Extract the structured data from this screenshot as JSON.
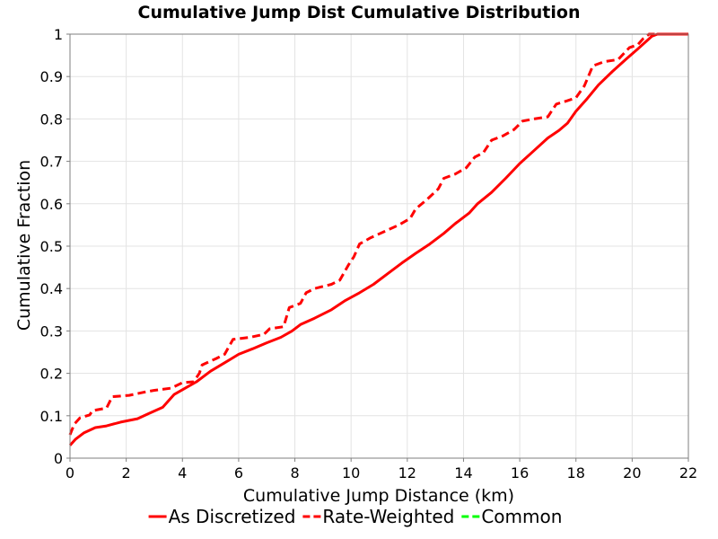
{
  "chart_data": {
    "type": "line",
    "title": "Cumulative Jump Dist Cumulative Distribution",
    "xlabel": "Cumulative Jump Distance (km)",
    "ylabel": "Cumulative Fraction",
    "xlim": [
      0,
      22
    ],
    "ylim": [
      0,
      1
    ],
    "x_ticks": [
      0,
      2,
      4,
      6,
      8,
      10,
      12,
      14,
      16,
      18,
      20,
      22
    ],
    "y_ticks": [
      0,
      0.1,
      0.2,
      0.3,
      0.4,
      0.5,
      0.6,
      0.7,
      0.8,
      0.9,
      1
    ],
    "y_tick_labels": [
      "0",
      "0.1",
      "0.2",
      "0.3",
      "0.4",
      "0.5",
      "0.6",
      "0.7",
      "0.8",
      "0.9",
      "1"
    ],
    "grid": true,
    "legend_position": "bottom",
    "series": [
      {
        "name": "As Discretized",
        "color": "#ff0000",
        "dash": "solid",
        "points": [
          [
            0,
            0.03
          ],
          [
            0.2,
            0.045
          ],
          [
            0.5,
            0.06
          ],
          [
            0.9,
            0.072
          ],
          [
            1.3,
            0.076
          ],
          [
            1.8,
            0.085
          ],
          [
            2.4,
            0.093
          ],
          [
            2.8,
            0.105
          ],
          [
            3.3,
            0.12
          ],
          [
            3.7,
            0.15
          ],
          [
            4.1,
            0.165
          ],
          [
            4.5,
            0.18
          ],
          [
            5.0,
            0.205
          ],
          [
            5.5,
            0.225
          ],
          [
            6.0,
            0.245
          ],
          [
            6.5,
            0.258
          ],
          [
            7.0,
            0.272
          ],
          [
            7.5,
            0.285
          ],
          [
            7.9,
            0.3
          ],
          [
            8.2,
            0.315
          ],
          [
            8.7,
            0.33
          ],
          [
            9.3,
            0.35
          ],
          [
            9.8,
            0.372
          ],
          [
            10.3,
            0.39
          ],
          [
            10.8,
            0.41
          ],
          [
            11.3,
            0.435
          ],
          [
            11.8,
            0.46
          ],
          [
            12.3,
            0.483
          ],
          [
            12.8,
            0.505
          ],
          [
            13.3,
            0.53
          ],
          [
            13.7,
            0.553
          ],
          [
            14.2,
            0.578
          ],
          [
            14.5,
            0.6
          ],
          [
            15.0,
            0.627
          ],
          [
            15.5,
            0.66
          ],
          [
            16.0,
            0.695
          ],
          [
            16.5,
            0.725
          ],
          [
            17.0,
            0.755
          ],
          [
            17.4,
            0.773
          ],
          [
            17.7,
            0.79
          ],
          [
            18.0,
            0.818
          ],
          [
            18.4,
            0.848
          ],
          [
            18.8,
            0.88
          ],
          [
            19.3,
            0.912
          ],
          [
            19.8,
            0.942
          ],
          [
            20.2,
            0.965
          ],
          [
            20.7,
            0.995
          ],
          [
            20.9,
            1.0
          ],
          [
            22,
            1.0
          ]
        ]
      },
      {
        "name": "Rate-Weighted",
        "color": "#ff0000",
        "dash": "dashed",
        "points": [
          [
            0,
            0.055
          ],
          [
            0.15,
            0.08
          ],
          [
            0.35,
            0.095
          ],
          [
            0.7,
            0.102
          ],
          [
            0.8,
            0.112
          ],
          [
            1.3,
            0.118
          ],
          [
            1.5,
            0.145
          ],
          [
            2.1,
            0.148
          ],
          [
            2.6,
            0.155
          ],
          [
            3.0,
            0.16
          ],
          [
            3.6,
            0.165
          ],
          [
            4.0,
            0.178
          ],
          [
            4.4,
            0.18
          ],
          [
            4.6,
            0.2
          ],
          [
            4.7,
            0.22
          ],
          [
            5.2,
            0.235
          ],
          [
            5.5,
            0.245
          ],
          [
            5.8,
            0.28
          ],
          [
            6.4,
            0.285
          ],
          [
            6.9,
            0.292
          ],
          [
            7.1,
            0.305
          ],
          [
            7.6,
            0.31
          ],
          [
            7.8,
            0.355
          ],
          [
            8.2,
            0.365
          ],
          [
            8.4,
            0.39
          ],
          [
            8.7,
            0.4
          ],
          [
            9.3,
            0.41
          ],
          [
            9.6,
            0.42
          ],
          [
            9.9,
            0.455
          ],
          [
            10.1,
            0.475
          ],
          [
            10.3,
            0.505
          ],
          [
            10.7,
            0.52
          ],
          [
            11.2,
            0.535
          ],
          [
            11.7,
            0.55
          ],
          [
            12.1,
            0.565
          ],
          [
            12.3,
            0.588
          ],
          [
            12.7,
            0.61
          ],
          [
            13.1,
            0.635
          ],
          [
            13.3,
            0.66
          ],
          [
            13.7,
            0.67
          ],
          [
            14.1,
            0.685
          ],
          [
            14.4,
            0.71
          ],
          [
            14.7,
            0.72
          ],
          [
            15.0,
            0.75
          ],
          [
            15.4,
            0.76
          ],
          [
            15.8,
            0.775
          ],
          [
            16.1,
            0.795
          ],
          [
            16.5,
            0.8
          ],
          [
            17.0,
            0.805
          ],
          [
            17.3,
            0.835
          ],
          [
            17.7,
            0.843
          ],
          [
            18.0,
            0.85
          ],
          [
            18.3,
            0.878
          ],
          [
            18.6,
            0.925
          ],
          [
            19.0,
            0.935
          ],
          [
            19.5,
            0.94
          ],
          [
            19.9,
            0.968
          ],
          [
            20.2,
            0.975
          ],
          [
            20.4,
            0.99
          ],
          [
            20.6,
            1.0
          ],
          [
            22,
            1.0
          ]
        ]
      },
      {
        "name": "Common",
        "color": "#00ff00",
        "dash": "dashed",
        "points": []
      }
    ]
  }
}
